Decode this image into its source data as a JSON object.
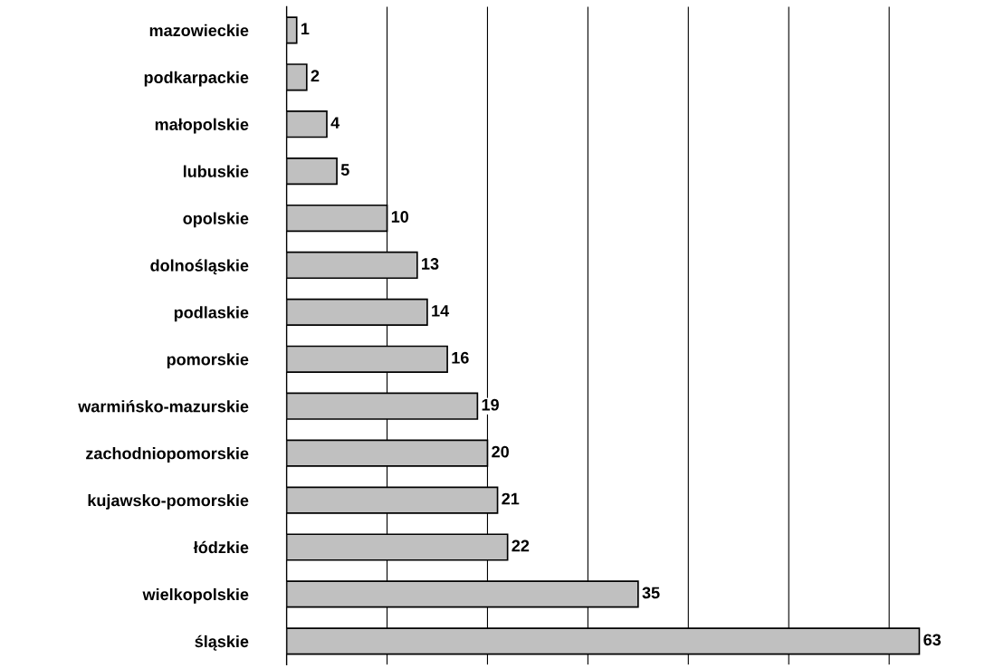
{
  "chart_data": {
    "type": "bar",
    "orientation": "horizontal",
    "categories": [
      "mazowieckie",
      "podkarpackie",
      "małopolskie",
      "lubuskie",
      "opolskie",
      "dolnośląskie",
      "podlaskie",
      "pomorskie",
      "warmińsko-mazurskie",
      "zachodniopomorskie",
      "kujawsko-pomorskie",
      "łódzkie",
      "wielkopolskie",
      "śląskie"
    ],
    "values": [
      1,
      2,
      4,
      5,
      10,
      13,
      14,
      16,
      19,
      20,
      21,
      22,
      35,
      63
    ],
    "color": "#c0c0c0",
    "xticks": [
      {
        "value": 10,
        "label": null
      },
      {
        "value": 20,
        "label": null
      },
      {
        "value": 30,
        "label": null
      },
      {
        "value": 40,
        "label": null
      },
      {
        "value": 50,
        "label": null
      },
      {
        "value": 60,
        "label": null
      }
    ],
    "grid": "x",
    "tick_labels": "y",
    "data_labels": true
  }
}
